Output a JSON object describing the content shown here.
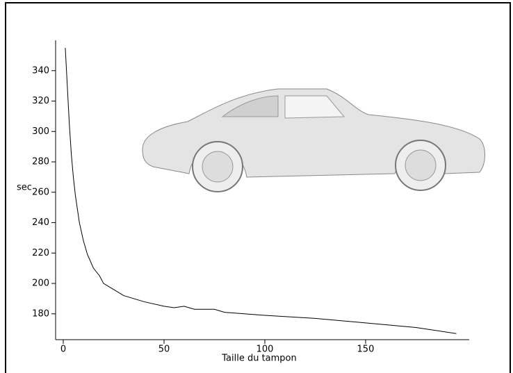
{
  "chart_data": {
    "type": "line",
    "x_label": "Taille du tampon",
    "y_label": "sec",
    "x": [
      1,
      2,
      3,
      4,
      5,
      6,
      8,
      10,
      12,
      15,
      18,
      20,
      25,
      30,
      40,
      50,
      55,
      60,
      65,
      75,
      80,
      100,
      125,
      150,
      175,
      195
    ],
    "values": [
      355,
      330,
      305,
      285,
      270,
      258,
      240,
      228,
      219,
      210,
      205,
      200,
      196,
      192,
      188,
      185,
      184,
      185,
      183,
      183,
      181,
      179,
      177,
      174,
      171,
      167
    ],
    "color": "#000000",
    "xlim": [
      -3.8,
      201.4
    ],
    "xticks": [
      0,
      50,
      100,
      150
    ],
    "ylim": [
      163,
      360
    ],
    "yticks": [
      180,
      200,
      220,
      240,
      260,
      280,
      300,
      320,
      340
    ]
  }
}
